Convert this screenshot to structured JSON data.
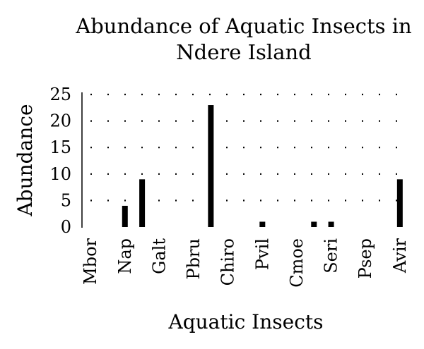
{
  "chart_data": {
    "type": "bar",
    "title_lines": [
      "Abundance of Aquatic Insects in",
      "Ndere Island"
    ],
    "xlabel": "Aquatic Insects",
    "ylabel": "Abundance",
    "ylim": [
      0,
      25
    ],
    "yticks": [
      0,
      5,
      10,
      15,
      20,
      25
    ],
    "grid": "horizontal dotted",
    "legend": "none",
    "bar_color": "#000000",
    "category_labels": [
      "Mbor",
      "Nap",
      "Galt",
      "Pbru",
      "Chiro",
      "Pvil",
      "Cmoe",
      "Seri",
      "Psep",
      "Avir"
    ],
    "bars": [
      {
        "x": 2.5,
        "value": 4
      },
      {
        "x": 3.5,
        "value": 9
      },
      {
        "x": 7.5,
        "value": 23
      },
      {
        "x": 10.5,
        "value": 1
      },
      {
        "x": 13.5,
        "value": 1
      },
      {
        "x": 14.5,
        "value": 1
      },
      {
        "x": 18.5,
        "value": 9
      }
    ],
    "x_slots": 19
  }
}
